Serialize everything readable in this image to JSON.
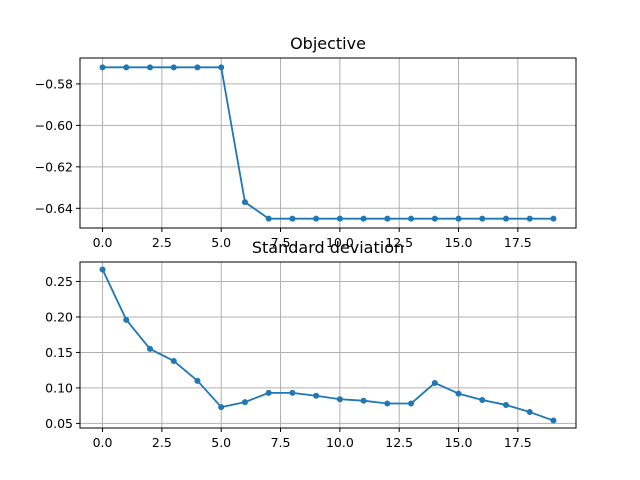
{
  "chart_data": [
    {
      "type": "line",
      "title": "Objective",
      "xlabel": "",
      "ylabel": "",
      "xlim": [
        -0.95,
        19.95
      ],
      "ylim": [
        -0.6495,
        -0.5675
      ],
      "xticks": [
        0.0,
        2.5,
        5.0,
        7.5,
        10.0,
        12.5,
        15.0,
        17.5
      ],
      "xtick_labels": [
        "0.0",
        "2.5",
        "5.0",
        "7.5",
        "10.0",
        "12.5",
        "15.0",
        "17.5"
      ],
      "yticks": [
        -0.58,
        -0.6,
        -0.62,
        -0.64
      ],
      "ytick_labels": [
        "−0.58",
        "−0.60",
        "−0.62",
        "−0.64"
      ],
      "grid": true,
      "color": "#1f77b4",
      "series": [
        {
          "x": [
            0,
            1,
            2,
            3,
            4,
            5,
            6,
            7,
            8,
            9,
            10,
            11,
            12,
            13,
            14,
            15,
            16,
            17,
            18,
            19
          ],
          "values": [
            -0.572,
            -0.572,
            -0.572,
            -0.572,
            -0.572,
            -0.572,
            -0.637,
            -0.645,
            -0.645,
            -0.645,
            -0.645,
            -0.645,
            -0.645,
            -0.645,
            -0.645,
            -0.645,
            -0.645,
            -0.645,
            -0.645,
            -0.645
          ]
        }
      ]
    },
    {
      "type": "line",
      "title": "Standard deviation",
      "xlabel": "",
      "ylabel": "",
      "xlim": [
        -0.95,
        19.95
      ],
      "ylim": [
        0.0435,
        0.2775
      ],
      "xticks": [
        0.0,
        2.5,
        5.0,
        7.5,
        10.0,
        12.5,
        15.0,
        17.5
      ],
      "xtick_labels": [
        "0.0",
        "2.5",
        "5.0",
        "7.5",
        "10.0",
        "12.5",
        "15.0",
        "17.5"
      ],
      "yticks": [
        0.05,
        0.1,
        0.15,
        0.2,
        0.25
      ],
      "ytick_labels": [
        "0.05",
        "0.10",
        "0.15",
        "0.20",
        "0.25"
      ],
      "grid": true,
      "color": "#1f77b4",
      "series": [
        {
          "x": [
            0,
            1,
            2,
            3,
            4,
            5,
            6,
            7,
            8,
            9,
            10,
            11,
            12,
            13,
            14,
            15,
            16,
            17,
            18,
            19
          ],
          "values": [
            0.267,
            0.196,
            0.155,
            0.138,
            0.11,
            0.073,
            0.08,
            0.093,
            0.093,
            0.089,
            0.084,
            0.082,
            0.078,
            0.078,
            0.107,
            0.092,
            0.083,
            0.076,
            0.066,
            0.054
          ]
        }
      ]
    }
  ]
}
